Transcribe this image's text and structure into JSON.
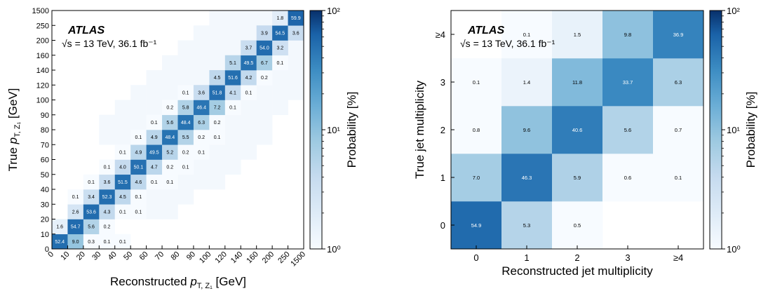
{
  "chart_data": [
    {
      "type": "heatmap",
      "xlabel": "Reconstructed p_{T,Z₁} [GeV]",
      "xlabel_main": "Reconstructed ",
      "xlabel_p": "p",
      "xlabel_sub": "T, Z₁",
      "xlabel_unit": " [GeV]",
      "ylabel": "True p_{T,Z₁} [GeV]",
      "ylabel_main": "True ",
      "ylabel_p": "p",
      "ylabel_sub": "T, Z₁",
      "ylabel_unit": " [GeV]",
      "x_ticks": [
        "0",
        "10",
        "20",
        "30",
        "40",
        "50",
        "60",
        "70",
        "80",
        "90",
        "100",
        "120",
        "140",
        "160",
        "200",
        "250",
        "1500"
      ],
      "y_ticks": [
        "0",
        "10",
        "20",
        "30",
        "40",
        "50",
        "60",
        "70",
        "80",
        "90",
        "100",
        "120",
        "140",
        "160",
        "200",
        "250",
        "1500"
      ],
      "colorbar": {
        "label": "Probability [%]",
        "scale": "log",
        "range": [
          1,
          100
        ],
        "ticks": [
          "10⁰",
          "10¹",
          "10²"
        ]
      },
      "annotation": {
        "experiment": "ATLAS",
        "energy": "√s = 13 TeV, 36.1 fb⁻¹"
      },
      "bin_values": [
        [
          52.4,
          9.0,
          0.3,
          0.1,
          0.1,
          null,
          null,
          null,
          null,
          null,
          null,
          null,
          null,
          null,
          null,
          null
        ],
        [
          1.6,
          54.7,
          5.6,
          0.2,
          null,
          null,
          null,
          null,
          null,
          null,
          null,
          null,
          null,
          null,
          null,
          null
        ],
        [
          null,
          2.6,
          53.6,
          4.3,
          0.1,
          0.1,
          null,
          null,
          null,
          null,
          null,
          null,
          null,
          null,
          null,
          null
        ],
        [
          null,
          0.1,
          3.4,
          52.3,
          4.5,
          0.1,
          null,
          null,
          null,
          null,
          null,
          null,
          null,
          null,
          null,
          null
        ],
        [
          null,
          null,
          0.1,
          3.6,
          51.5,
          4.6,
          0.1,
          0.1,
          null,
          null,
          null,
          null,
          null,
          null,
          null,
          null
        ],
        [
          null,
          null,
          null,
          0.1,
          4.0,
          50.1,
          4.7,
          0.2,
          0.1,
          null,
          null,
          null,
          null,
          null,
          null,
          null
        ],
        [
          null,
          null,
          null,
          null,
          0.1,
          4.9,
          49.5,
          5.2,
          0.2,
          0.1,
          null,
          null,
          null,
          null,
          null,
          null
        ],
        [
          null,
          null,
          null,
          null,
          null,
          0.1,
          4.9,
          48.4,
          5.5,
          0.2,
          0.1,
          null,
          null,
          null,
          null,
          null
        ],
        [
          null,
          null,
          null,
          null,
          null,
          null,
          0.1,
          5.6,
          48.4,
          6.3,
          0.2,
          null,
          null,
          null,
          null,
          null
        ],
        [
          null,
          null,
          null,
          null,
          null,
          null,
          null,
          0.2,
          5.8,
          46.4,
          7.2,
          0.1,
          null,
          null,
          null,
          null
        ],
        [
          null,
          null,
          null,
          null,
          null,
          null,
          null,
          null,
          0.1,
          3.6,
          51.8,
          4.1,
          0.1,
          null,
          null,
          null
        ],
        [
          null,
          null,
          null,
          null,
          null,
          null,
          null,
          null,
          null,
          null,
          4.5,
          51.6,
          4.2,
          0.2,
          null,
          null
        ],
        [
          null,
          null,
          null,
          null,
          null,
          null,
          null,
          null,
          null,
          null,
          null,
          5.1,
          49.5,
          6.7,
          0.1,
          null
        ],
        [
          null,
          null,
          null,
          null,
          null,
          null,
          null,
          null,
          null,
          null,
          null,
          null,
          3.7,
          54.0,
          3.2,
          null
        ],
        [
          null,
          null,
          null,
          null,
          null,
          null,
          null,
          null,
          null,
          null,
          null,
          null,
          null,
          3.9,
          54.5,
          3.6
        ],
        [
          null,
          null,
          null,
          null,
          null,
          null,
          null,
          null,
          null,
          null,
          null,
          null,
          null,
          null,
          1.8,
          59.9
        ]
      ],
      "faint_bins": [
        [
          2,
          5
        ],
        [
          2,
          6
        ],
        [
          2,
          7
        ],
        [
          3,
          6
        ],
        [
          3,
          7
        ],
        [
          3,
          8
        ],
        [
          4,
          8
        ],
        [
          4,
          9
        ],
        [
          4,
          10
        ],
        [
          5,
          9
        ],
        [
          5,
          10
        ],
        [
          5,
          11
        ],
        [
          6,
          10
        ],
        [
          6,
          11
        ],
        [
          6,
          12
        ],
        [
          7,
          3
        ],
        [
          7,
          4
        ],
        [
          7,
          11
        ],
        [
          7,
          12
        ],
        [
          7,
          13
        ],
        [
          8,
          3
        ],
        [
          8,
          4
        ],
        [
          8,
          5
        ],
        [
          8,
          11
        ],
        [
          8,
          12
        ],
        [
          8,
          13
        ],
        [
          9,
          4
        ],
        [
          9,
          5
        ],
        [
          9,
          6
        ],
        [
          9,
          12
        ],
        [
          9,
          13
        ],
        [
          9,
          14
        ],
        [
          10,
          5
        ],
        [
          10,
          6
        ],
        [
          10,
          7
        ],
        [
          10,
          13
        ],
        [
          10,
          14
        ],
        [
          10,
          15
        ],
        [
          11,
          6
        ],
        [
          11,
          7
        ],
        [
          11,
          8
        ],
        [
          11,
          9
        ],
        [
          11,
          14
        ],
        [
          11,
          15
        ],
        [
          12,
          7
        ],
        [
          12,
          8
        ],
        [
          12,
          9
        ],
        [
          12,
          10
        ],
        [
          12,
          15
        ],
        [
          13,
          8
        ],
        [
          13,
          9
        ],
        [
          13,
          10
        ],
        [
          13,
          11
        ],
        [
          13,
          15
        ],
        [
          14,
          9
        ],
        [
          14,
          10
        ],
        [
          14,
          11
        ],
        [
          14,
          12
        ],
        [
          14,
          13
        ],
        [
          15,
          10
        ],
        [
          15,
          11
        ],
        [
          15,
          12
        ],
        [
          15,
          13
        ],
        [
          15,
          14
        ]
      ]
    },
    {
      "type": "heatmap",
      "xlabel": "Reconstructed jet multiplicity",
      "ylabel": "True jet multiplicity",
      "x_categories": [
        "0",
        "1",
        "2",
        "3",
        "≥4"
      ],
      "y_categories": [
        "0",
        "1",
        "2",
        "3",
        "≥4"
      ],
      "colorbar": {
        "label": "Probability [%]",
        "scale": "log",
        "range": [
          1,
          100
        ],
        "ticks": [
          "10⁰",
          "10¹",
          "10²"
        ]
      },
      "annotation": {
        "experiment": "ATLAS",
        "energy": "√s = 13 TeV, 36.1 fb⁻¹"
      },
      "bin_values": [
        [
          54.9,
          5.3,
          0.5,
          null,
          null
        ],
        [
          7.0,
          46.3,
          5.9,
          0.6,
          0.1
        ],
        [
          0.8,
          9.6,
          40.6,
          5.6,
          0.7
        ],
        [
          0.1,
          1.4,
          11.8,
          33.7,
          6.3
        ],
        [
          null,
          0.1,
          1.5,
          9.8,
          36.9
        ]
      ]
    }
  ]
}
